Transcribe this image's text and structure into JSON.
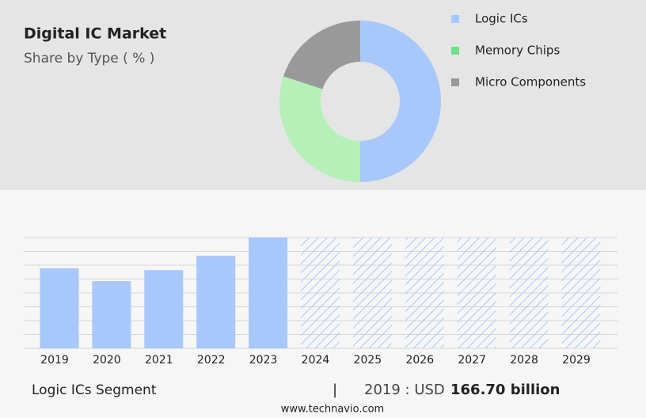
{
  "chart_data": [
    {
      "type": "pie",
      "title": "Digital IC Market",
      "subtitle": "Share by Type ( % )",
      "categories": [
        "Logic ICs",
        "Memory Chips",
        "Micro Components"
      ],
      "values": [
        50,
        30,
        20
      ],
      "colors": [
        "#a8c8fb",
        "#b6f0b9",
        "#999999"
      ],
      "legend_colors": [
        "#a8c8fb",
        "#6fe08a",
        "#999999"
      ],
      "donut": true,
      "legend": "right"
    },
    {
      "type": "bar",
      "categories": [
        "2019",
        "2020",
        "2021",
        "2022",
        "2023",
        "2024",
        "2025",
        "2026",
        "2027",
        "2028",
        "2029"
      ],
      "values": [
        166.7,
        140,
        163,
        193,
        231,
        null,
        null,
        null,
        null,
        null,
        null
      ],
      "color": "#a8c8fb",
      "ylim": [
        0,
        231
      ],
      "grid": true
    }
  ],
  "footer": {
    "segment": "Logic ICs Segment",
    "separator": "|",
    "year_text": "2019 : USD",
    "value_text": "166.70 billion",
    "source": "www.technavio.com"
  }
}
